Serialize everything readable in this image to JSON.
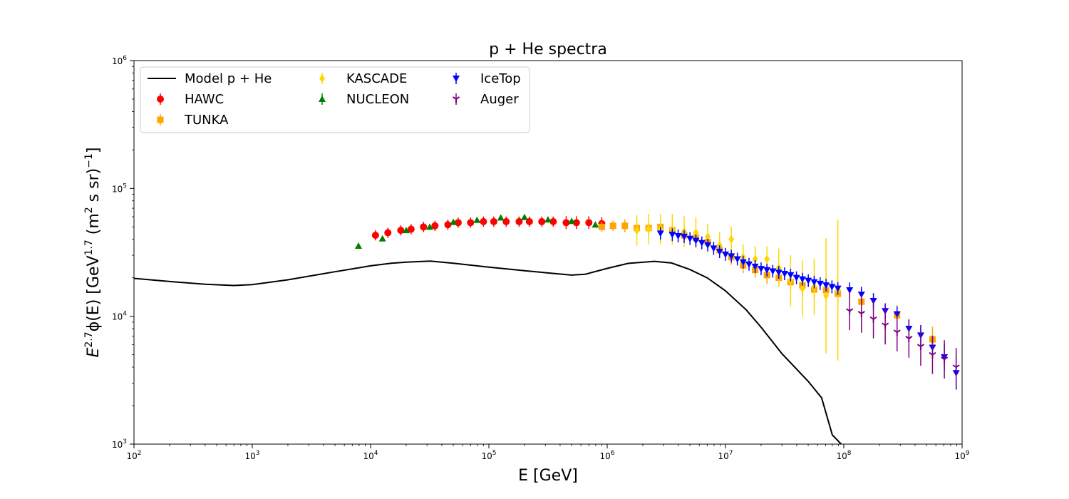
{
  "chart_data": {
    "type": "scatter",
    "title": "p + He spectra",
    "xlabel": "E [GeV]",
    "ylabel_parts": {
      "base": "E",
      "exp": "2.7",
      "phi": "ϕ(E) [GeV",
      "unit_exp": "1.7",
      "mid": " (m",
      "m_exp": "2",
      "tail": " s sr)",
      "tail_exp": "−1",
      "close": "]"
    },
    "xscale": "log",
    "yscale": "log",
    "xlim": [
      100,
      1000000000
    ],
    "ylim": [
      1000,
      1000000
    ],
    "x_tick_labels": [
      "10",
      "10",
      "10",
      "10",
      "10",
      "10",
      "10",
      "10"
    ],
    "x_tick_exponents": [
      "2",
      "3",
      "4",
      "5",
      "6",
      "7",
      "8",
      "9"
    ],
    "x_tick_values": [
      100,
      1000,
      10000,
      100000,
      1000000,
      10000000,
      100000000,
      1000000000
    ],
    "y_tick_labels": [
      "10",
      "10",
      "10",
      "10"
    ],
    "y_tick_exponents": [
      "3",
      "4",
      "5",
      "6"
    ],
    "y_tick_values": [
      1000,
      10000,
      100000,
      1000000
    ],
    "legend_position": "upper-left",
    "legend_entries": [
      "Model p + He",
      "HAWC",
      "TUNKA",
      "KASCADE",
      "NUCLEON",
      "IceTop",
      "Auger"
    ],
    "series": [
      {
        "name": "Model p + He",
        "kind": "line",
        "color": "#000000",
        "x": [
          100,
          200,
          400,
          700,
          1000,
          2000,
          5000,
          10000,
          15000,
          20000,
          32000,
          50000,
          100000,
          200000,
          500000,
          650000,
          1000000,
          1500000,
          2500000,
          3500000,
          5000000,
          7000000,
          10000000,
          15000000,
          20000000,
          30000000,
          50000000,
          65000000,
          80000000,
          95000000
        ],
        "y": [
          19800,
          18700,
          17800,
          17400,
          17700,
          19300,
          22300,
          24800,
          26000,
          26500,
          27000,
          26000,
          24200,
          22700,
          21000,
          21300,
          23700,
          25900,
          26900,
          26100,
          23200,
          20000,
          15800,
          11200,
          8200,
          5100,
          3100,
          2300,
          1180,
          1000
        ]
      },
      {
        "name": "HAWC",
        "kind": "points",
        "marker": "circle",
        "color": "#ff0000",
        "x": [
          11000,
          14000,
          18000,
          22000,
          28000,
          35000,
          45000,
          55000,
          70000,
          90000,
          110000,
          140000,
          180000,
          220000,
          280000,
          350000,
          450000,
          550000,
          700000,
          900000
        ],
        "y": [
          43000,
          45000,
          47000,
          48000,
          50000,
          51000,
          52000,
          54000,
          54000,
          55000,
          55000,
          55000,
          55000,
          55000,
          55000,
          55000,
          54000,
          54000,
          54000,
          53000
        ],
        "err": [
          0.04,
          0.04,
          0.04,
          0.04,
          0.04,
          0.04,
          0.04,
          0.04,
          0.04,
          0.04,
          0.04,
          0.04,
          0.04,
          0.04,
          0.04,
          0.04,
          0.05,
          0.05,
          0.05,
          0.05
        ]
      },
      {
        "name": "TUNKA",
        "kind": "points",
        "marker": "square",
        "color": "#ffa500",
        "x": [
          900000,
          1120000,
          1410000,
          1780000,
          2240000,
          2820000,
          3550000,
          4470000,
          5620000,
          7080000,
          8910000,
          11200000,
          14100000,
          17800000,
          22400000,
          28200000,
          35500000,
          44700000,
          56200000,
          70800000,
          89100000,
          141000000,
          282000000,
          562000000
        ],
        "y": [
          50000,
          51000,
          51000,
          49000,
          49000,
          50000,
          47000,
          43000,
          41000,
          38000,
          33000,
          29000,
          25000,
          23000,
          21000,
          20000,
          18500,
          17500,
          16200,
          16000,
          15000,
          13000,
          10200,
          6600
        ],
        "err": [
          0.04,
          0.04,
          0.05,
          0.05,
          0.06,
          0.06,
          0.06,
          0.06,
          0.06,
          0.06,
          0.06,
          0.06,
          0.06,
          0.06,
          0.07,
          0.07,
          0.08,
          0.08,
          0.08,
          0.09,
          0.1,
          0.08,
          0.08,
          0.1
        ]
      },
      {
        "name": "KASCADE",
        "kind": "points",
        "marker": "diamond",
        "color": "#ffd700",
        "x": [
          1780000,
          2240000,
          2820000,
          3550000,
          4470000,
          5620000,
          7080000,
          8910000,
          11200000,
          14100000,
          17800000,
          22400000,
          28200000,
          35500000,
          44700000,
          56200000,
          70800000,
          89100000
        ],
        "y": [
          47000,
          48000,
          48000,
          48000,
          46000,
          45000,
          42000,
          36000,
          40000,
          29000,
          28000,
          28000,
          24000,
          19000,
          16500,
          17000,
          14500,
          16000
        ],
        "err": [
          0.12,
          0.12,
          0.12,
          0.12,
          0.12,
          0.12,
          0.1,
          0.1,
          0.1,
          0.1,
          0.1,
          0.1,
          0.15,
          0.2,
          0.22,
          0.22,
          0.45,
          0.55
        ]
      },
      {
        "name": "NUCLEON",
        "kind": "points",
        "marker": "triangle-up",
        "color": "#008000",
        "x": [
          7900,
          12600,
          20000,
          31600,
          50100,
          79400,
          126000,
          200000,
          316000,
          501000,
          794000
        ],
        "y": [
          35500,
          40500,
          47000,
          50000,
          54500,
          56500,
          59000,
          59500,
          57000,
          55500,
          52000
        ],
        "err": [
          0,
          0,
          0,
          0,
          0,
          0,
          0,
          0,
          0,
          0,
          0
        ]
      },
      {
        "name": "IceTop",
        "kind": "points",
        "marker": "triangle-down",
        "color": "#0000ff",
        "x": [
          2820000,
          3550000,
          3980000,
          4470000,
          5010000,
          5620000,
          6310000,
          7080000,
          7940000,
          8910000,
          10000000,
          11200000,
          12600000,
          14100000,
          15800000,
          17800000,
          20000000,
          22400000,
          25100000,
          28200000,
          31600000,
          35500000,
          39800000,
          44700000,
          50100000,
          56200000,
          63100000,
          70800000,
          79400000,
          89100000,
          112000000,
          141000000,
          178000000,
          224000000,
          282000000,
          355000000,
          447000000,
          562000000,
          708000000,
          891000000
        ],
        "y": [
          44500,
          43500,
          42500,
          42000,
          40500,
          39000,
          37500,
          36000,
          34000,
          32000,
          30500,
          29500,
          28000,
          26500,
          25500,
          24500,
          23500,
          23000,
          22500,
          22000,
          21500,
          21000,
          20000,
          19500,
          19000,
          18500,
          18000,
          17500,
          17000,
          16500,
          16000,
          14800,
          13200,
          11000,
          10400,
          8000,
          7100,
          5700,
          4800,
          3600
        ],
        "err": [
          0.05,
          0.05,
          0.05,
          0.05,
          0.05,
          0.05,
          0.05,
          0.05,
          0.05,
          0.05,
          0.05,
          0.05,
          0.05,
          0.05,
          0.05,
          0.05,
          0.05,
          0.05,
          0.05,
          0.05,
          0.05,
          0.05,
          0.05,
          0.05,
          0.05,
          0.05,
          0.05,
          0.05,
          0.05,
          0.05,
          0.06,
          0.06,
          0.06,
          0.06,
          0.06,
          0.07,
          0.08,
          0.09,
          0.1,
          0.13
        ]
      },
      {
        "name": "Auger",
        "kind": "points",
        "marker": "tri-down",
        "color": "#800080",
        "x": [
          112000000,
          141000000,
          178000000,
          224000000,
          282000000,
          355000000,
          447000000,
          562000000,
          708000000,
          891000000
        ],
        "y": [
          11000,
          10500,
          9500,
          8500,
          7500,
          6700,
          5800,
          5000,
          4600,
          4000
        ],
        "err": [
          0.15,
          0.15,
          0.15,
          0.15,
          0.15,
          0.15,
          0.15,
          0.15,
          0.15,
          0.15
        ]
      }
    ]
  }
}
